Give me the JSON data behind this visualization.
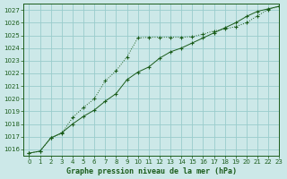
{
  "title": "Graphe pression niveau de la mer (hPa)",
  "background_color": "#cce8e8",
  "grid_color": "#99cccc",
  "line_color": "#1a5c1a",
  "marker_color": "#1a5c1a",
  "xlim": [
    -0.5,
    23
  ],
  "ylim": [
    1015.5,
    1027.5
  ],
  "yticks": [
    1016,
    1017,
    1018,
    1019,
    1020,
    1021,
    1022,
    1023,
    1024,
    1025,
    1026,
    1027
  ],
  "xticks": [
    0,
    1,
    2,
    3,
    4,
    5,
    6,
    7,
    8,
    9,
    10,
    11,
    12,
    13,
    14,
    15,
    16,
    17,
    18,
    19,
    20,
    21,
    22,
    23
  ],
  "series1_x": [
    0,
    1,
    2,
    3,
    4,
    5,
    6,
    7,
    8,
    9,
    10,
    11,
    12,
    13,
    14,
    15,
    16,
    17,
    18,
    19,
    20,
    21,
    22,
    23
  ],
  "series1_y": [
    1015.7,
    1015.85,
    1016.9,
    1017.3,
    1018.0,
    1018.6,
    1019.1,
    1019.8,
    1020.4,
    1021.5,
    1022.1,
    1022.5,
    1023.2,
    1023.7,
    1024.0,
    1024.4,
    1024.8,
    1025.2,
    1025.6,
    1026.0,
    1026.5,
    1026.9,
    1027.1,
    1027.3
  ],
  "series2_x": [
    0,
    1,
    2,
    3,
    4,
    5,
    6,
    7,
    8,
    9,
    10,
    11,
    12,
    13,
    14,
    15,
    16,
    17,
    18,
    19,
    20,
    21,
    22,
    23
  ],
  "series2_y": [
    1015.7,
    1015.85,
    1016.9,
    1017.25,
    1018.5,
    1019.3,
    1020.0,
    1021.4,
    1022.2,
    1023.3,
    1024.8,
    1024.85,
    1024.85,
    1024.85,
    1024.85,
    1024.9,
    1025.1,
    1025.35,
    1025.5,
    1025.7,
    1026.0,
    1026.55,
    1027.05,
    1027.3
  ]
}
